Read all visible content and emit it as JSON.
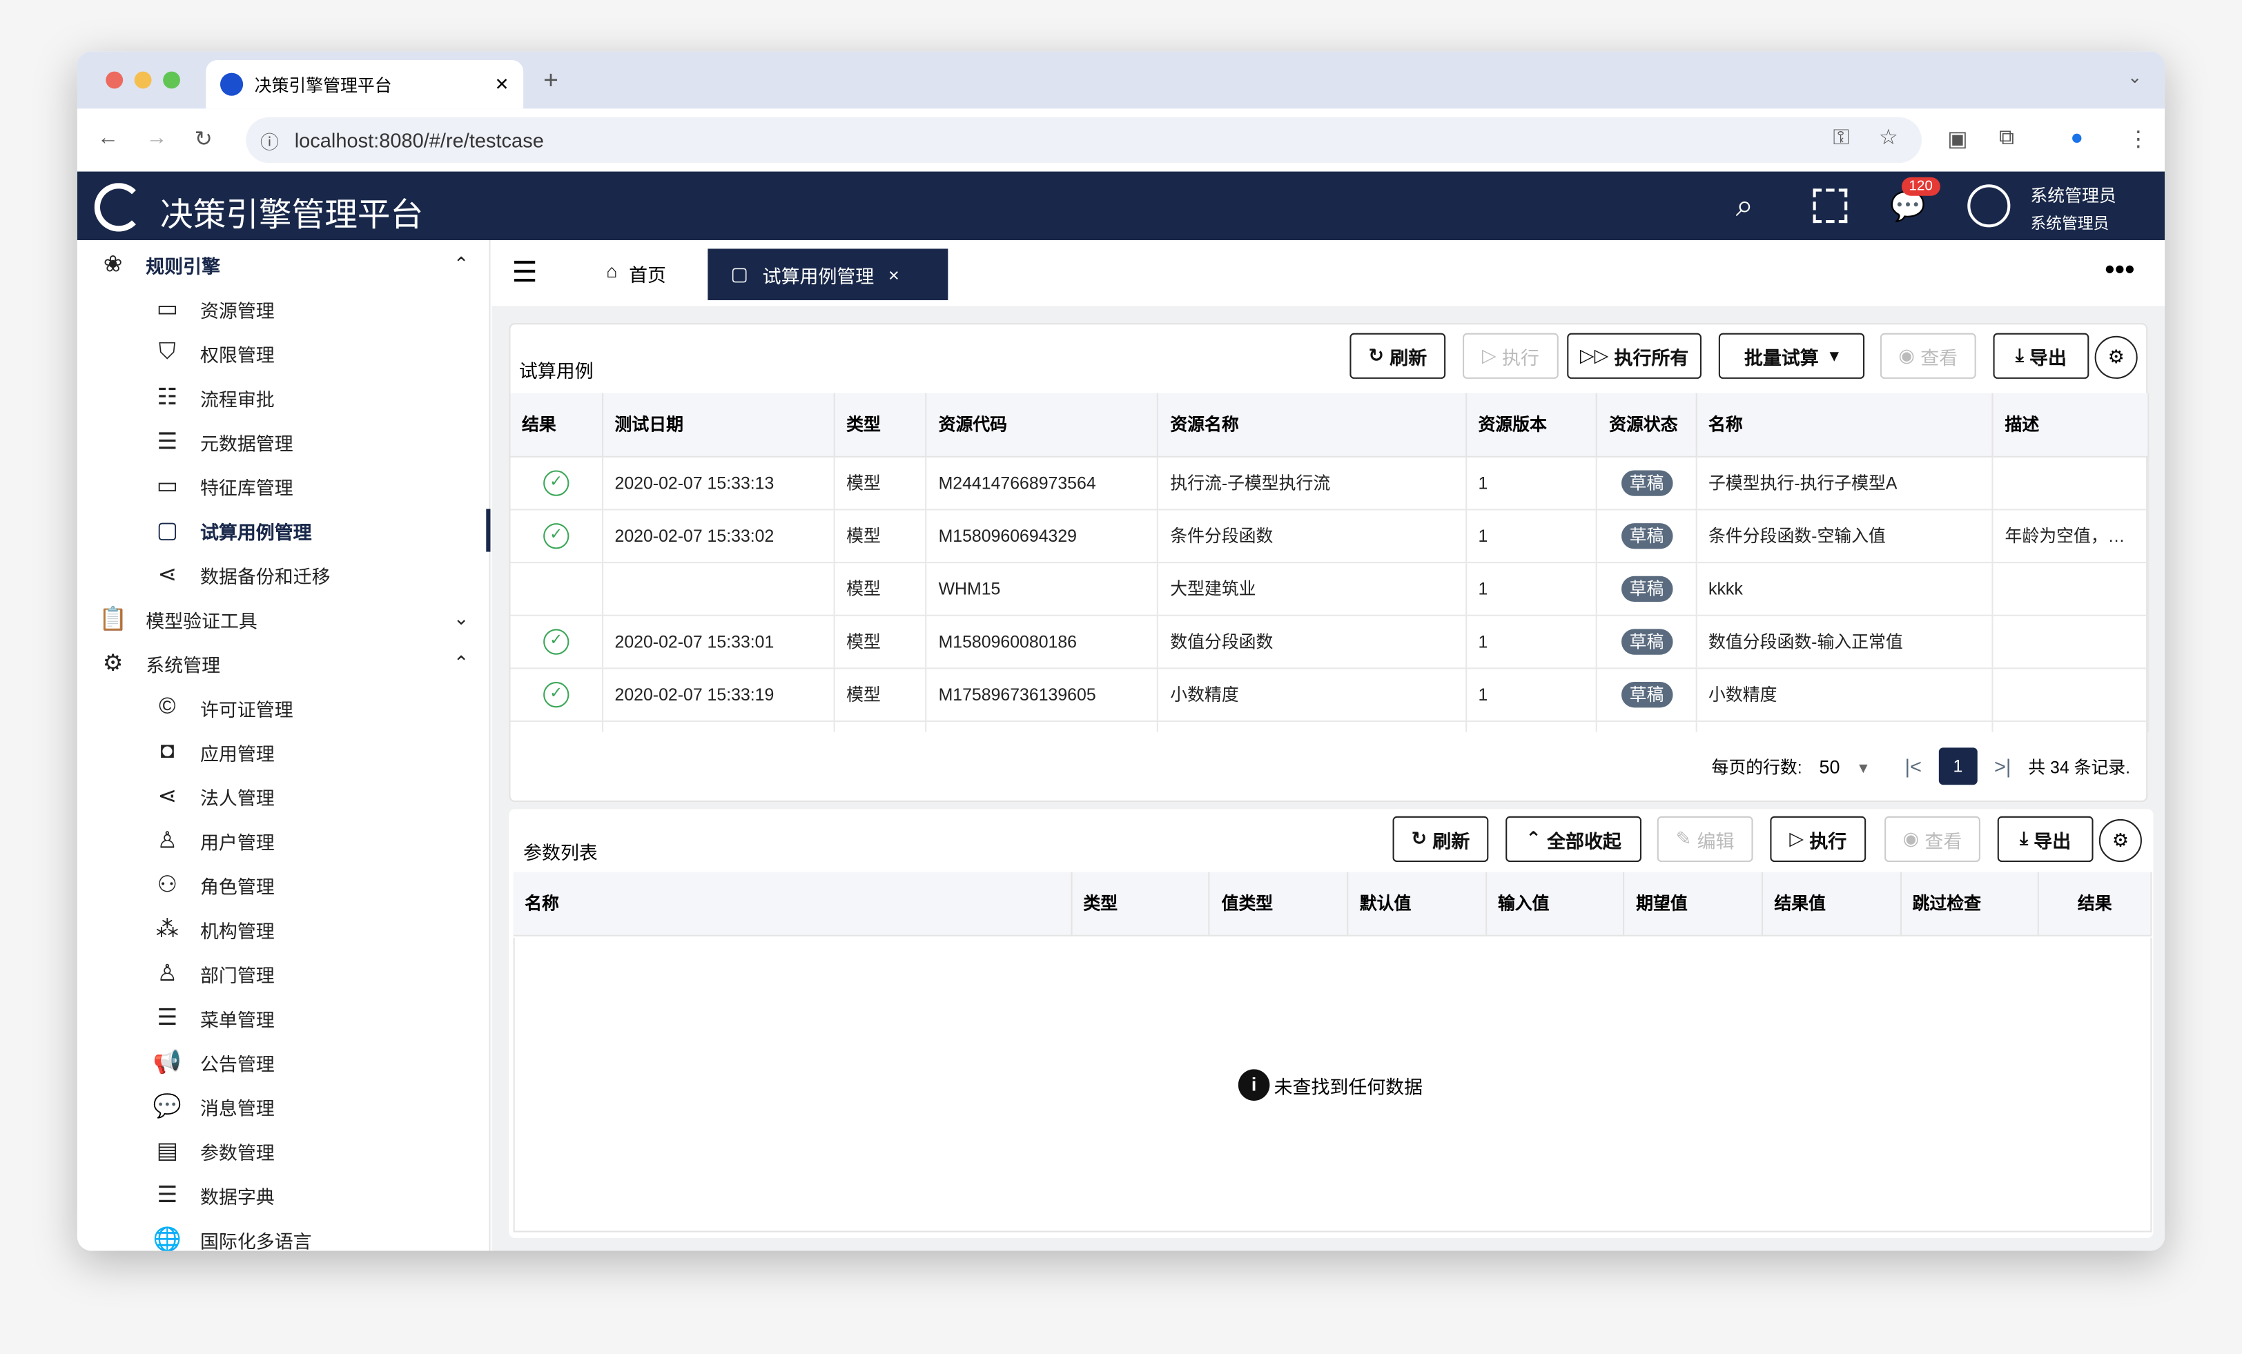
{
  "browser": {
    "tab_title": "决策引擎管理平台",
    "url": "localhost:8080/#/re/testcase"
  },
  "header": {
    "title": "决策引擎管理平台",
    "notif_count": "120",
    "user_name": "系统管理员",
    "user_role": "系统管理员"
  },
  "sidebar": {
    "groups": [
      {
        "label": "规则引擎",
        "icon": "flower-icon",
        "expanded": true,
        "items": [
          {
            "label": "资源管理",
            "icon": "folder-icon"
          },
          {
            "label": "权限管理",
            "icon": "shield-icon"
          },
          {
            "label": "流程审批",
            "icon": "sliders-icon"
          },
          {
            "label": "元数据管理",
            "icon": "list-icon"
          },
          {
            "label": "特征库管理",
            "icon": "folder-icon"
          },
          {
            "label": "试算用例管理",
            "icon": "briefcase-icon",
            "active": true
          },
          {
            "label": "数据备份和迁移",
            "icon": "share-icon"
          }
        ]
      },
      {
        "label": "模型验证工具",
        "icon": "clipboard-icon",
        "expanded": false,
        "items": []
      },
      {
        "label": "系统管理",
        "icon": "gear-icon",
        "expanded": true,
        "items": [
          {
            "label": "许可证管理",
            "icon": "copyright-icon"
          },
          {
            "label": "应用管理",
            "icon": "app-icon"
          },
          {
            "label": "法人管理",
            "icon": "share-icon"
          },
          {
            "label": "用户管理",
            "icon": "user-icon"
          },
          {
            "label": "角色管理",
            "icon": "users-icon"
          },
          {
            "label": "机构管理",
            "icon": "org-icon"
          },
          {
            "label": "部门管理",
            "icon": "dept-icon"
          },
          {
            "label": "菜单管理",
            "icon": "menu-icon"
          },
          {
            "label": "公告管理",
            "icon": "megaphone-icon"
          },
          {
            "label": "消息管理",
            "icon": "chat-icon"
          },
          {
            "label": "参数管理",
            "icon": "params-icon"
          },
          {
            "label": "数据字典",
            "icon": "list-icon"
          },
          {
            "label": "国际化多语言",
            "icon": "globe-icon"
          }
        ]
      }
    ]
  },
  "tabs": {
    "home": "首页",
    "active": "试算用例管理"
  },
  "testcases": {
    "title": "试算用例",
    "buttons": {
      "refresh": "刷新",
      "run": "执行",
      "run_all": "执行所有",
      "batch": "批量试算",
      "view": "查看",
      "export": "导出"
    },
    "columns": [
      "结果",
      "测试日期",
      "类型",
      "资源代码",
      "资源名称",
      "资源版本",
      "资源状态",
      "名称",
      "描述"
    ],
    "rows": [
      {
        "result": "ok",
        "date": "2020-02-07 15:33:13",
        "type": "模型",
        "code": "M244147668973564",
        "res_name": "执行流-子模型执行流",
        "version": "1",
        "status": "草稿",
        "name": "子模型执行-执行子模型A",
        "desc": ""
      },
      {
        "result": "ok",
        "date": "2020-02-07 15:33:02",
        "type": "模型",
        "code": "M1580960694329",
        "res_name": "条件分段函数",
        "version": "1",
        "status": "草稿",
        "name": "条件分段函数-空输入值",
        "desc": "年龄为空值，…"
      },
      {
        "result": "",
        "date": "",
        "type": "模型",
        "code": "WHM15",
        "res_name": "大型建筑业",
        "version": "1",
        "status": "草稿",
        "name": "kkkk",
        "desc": ""
      },
      {
        "result": "ok",
        "date": "2020-02-07 15:33:01",
        "type": "模型",
        "code": "M1580960080186",
        "res_name": "数值分段函数",
        "version": "1",
        "status": "草稿",
        "name": "数值分段函数-输入正常值",
        "desc": ""
      },
      {
        "result": "ok",
        "date": "2020-02-07 15:33:19",
        "type": "模型",
        "code": "M175896736139605",
        "res_name": "小数精度",
        "version": "1",
        "status": "草稿",
        "name": "小数精度",
        "desc": ""
      }
    ],
    "pager": {
      "rows_label": "每页的行数:",
      "rows_per_page": "50",
      "page": "1",
      "total": "共 34 条记录."
    }
  },
  "params": {
    "title": "参数列表",
    "buttons": {
      "refresh": "刷新",
      "collapse": "全部收起",
      "edit": "编辑",
      "run": "执行",
      "view": "查看",
      "export": "导出"
    },
    "columns": [
      "名称",
      "类型",
      "值类型",
      "默认值",
      "输入值",
      "期望值",
      "结果值",
      "跳过检查",
      "结果"
    ],
    "empty": "未查找到任何数据"
  }
}
